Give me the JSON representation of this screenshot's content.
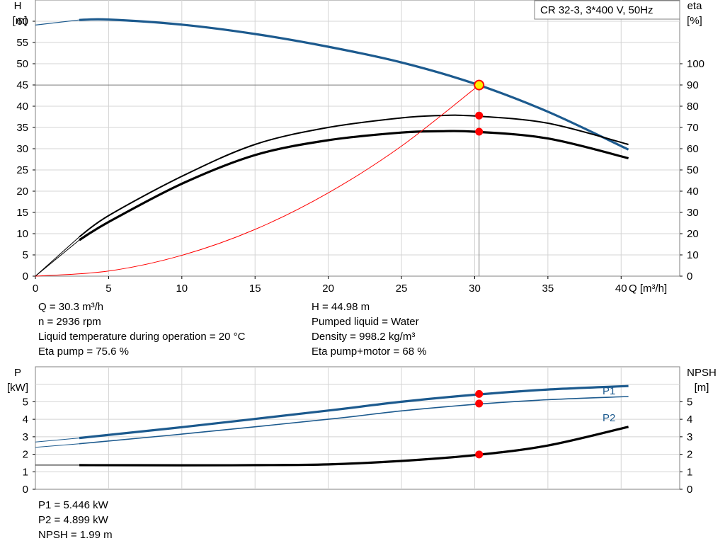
{
  "header": {
    "pump_label": "CR 32-3, 3*400 V, 50Hz"
  },
  "colors": {
    "blue": "#1c5a8e",
    "black": "#000000",
    "red": "#ff0000",
    "op_marker": "#ffee00",
    "grid": "#d4d4d4"
  },
  "upper_info": {
    "left": [
      "Q = 30.3 m³/h",
      "n = 2936 rpm",
      "Liquid temperature during operation = 20 °C",
      "Eta pump = 75.6 %"
    ],
    "right": [
      "H = 44.98 m",
      "Pumped liquid = Water",
      "Density = 998.2 kg/m³",
      "Eta pump+motor = 68 %"
    ]
  },
  "lower_info": [
    "P1 = 5.446 kW",
    "P2 = 4.899 kW",
    "NPSH = 1.99 m"
  ],
  "chart_data": [
    {
      "type": "line",
      "x_axis": {
        "label": "Q [m³/h]",
        "range": [
          0,
          44
        ],
        "ticks": [
          0,
          5,
          10,
          15,
          20,
          25,
          30,
          35,
          40
        ]
      },
      "y_axis_left": {
        "label_top": "H",
        "label_unit": "[m]",
        "range": [
          0,
          65
        ],
        "ticks": [
          0,
          5,
          10,
          15,
          20,
          25,
          30,
          35,
          40,
          45,
          50,
          55,
          60
        ]
      },
      "y_axis_right": {
        "label_top": "eta",
        "label_unit": "[%]",
        "range": [
          0,
          130
        ],
        "ticks": [
          0,
          10,
          20,
          30,
          40,
          50,
          60,
          70,
          80,
          90,
          100
        ]
      },
      "grid": true,
      "legend_box": "top-right",
      "operating_point": {
        "Q": 30.3,
        "H": 44.98
      },
      "series": [
        {
          "axis": "left",
          "color": "blue",
          "width": 3.2,
          "points": [
            [
              3,
              60.3
            ],
            [
              5,
              60.4
            ],
            [
              10,
              59.2
            ],
            [
              15,
              57.0
            ],
            [
              20,
              54.0
            ],
            [
              25,
              50.3
            ],
            [
              30,
              45.3
            ],
            [
              35,
              38.7
            ],
            [
              40.5,
              29.8
            ]
          ]
        },
        {
          "axis": "left",
          "color": "blue",
          "width": 1.2,
          "points": [
            [
              0,
              59.1
            ],
            [
              3,
              60.3
            ]
          ]
        },
        {
          "axis": "right",
          "color": "black",
          "width": 2.0,
          "points": [
            [
              3,
              18.5
            ],
            [
              5,
              28.5
            ],
            [
              10,
              47.0
            ],
            [
              15,
              62.0
            ],
            [
              20,
              70.0
            ],
            [
              25,
              74.5
            ],
            [
              27.5,
              75.6
            ],
            [
              30,
              75.4
            ],
            [
              35,
              72.0
            ],
            [
              40.5,
              62.0
            ]
          ]
        },
        {
          "axis": "right",
          "color": "black",
          "width": 3.2,
          "points": [
            [
              3,
              17.0
            ],
            [
              5,
              25.5
            ],
            [
              10,
              43.5
            ],
            [
              15,
              57.0
            ],
            [
              20,
              64.0
            ],
            [
              25,
              67.6
            ],
            [
              27.5,
              68.2
            ],
            [
              30,
              68.0
            ],
            [
              35,
              64.8
            ],
            [
              40.5,
              55.5
            ]
          ]
        },
        {
          "axis": "right",
          "color": "black",
          "width": 1.0,
          "points": [
            [
              0,
              0
            ],
            [
              3,
              18.5
            ]
          ]
        },
        {
          "axis": "right",
          "color": "black",
          "width": 1.0,
          "points": [
            [
              0,
              0
            ],
            [
              3,
              17.0
            ]
          ]
        },
        {
          "axis": "left",
          "color": "red",
          "width": 1.0,
          "points": [
            [
              0,
              0
            ],
            [
              5,
              1.2
            ],
            [
              10,
              4.9
            ],
            [
              15,
              11.0
            ],
            [
              20,
              19.6
            ],
            [
              25,
              30.6
            ],
            [
              30.3,
              44.98
            ]
          ]
        }
      ],
      "markers": [
        {
          "axis": "right",
          "x": 30.3,
          "y": 75.6
        },
        {
          "axis": "right",
          "x": 30.3,
          "y": 68.0
        }
      ]
    },
    {
      "type": "line",
      "x_axis": {
        "range": [
          0,
          44
        ]
      },
      "y_axis_left": {
        "label_top": "P",
        "label_unit": "[kW]",
        "range": [
          0,
          7
        ],
        "ticks": [
          0,
          1,
          2,
          3,
          4,
          5
        ]
      },
      "y_axis_right": {
        "label_top": "NPSH",
        "label_unit": "[m]",
        "range": [
          0,
          7
        ],
        "ticks": [
          0,
          1,
          2,
          3,
          4,
          5
        ]
      },
      "grid": true,
      "series": [
        {
          "name": "P1",
          "axis": "left",
          "color": "blue",
          "width": 3.2,
          "points": [
            [
              3,
              2.93
            ],
            [
              10,
              3.55
            ],
            [
              20,
              4.5
            ],
            [
              25,
              5.0
            ],
            [
              30,
              5.4
            ],
            [
              35,
              5.7
            ],
            [
              40.5,
              5.9
            ]
          ]
        },
        {
          "name": "P2",
          "axis": "left",
          "color": "blue",
          "width": 1.6,
          "points": [
            [
              3,
              2.6
            ],
            [
              10,
              3.15
            ],
            [
              20,
              4.0
            ],
            [
              25,
              4.48
            ],
            [
              30,
              4.85
            ],
            [
              35,
              5.12
            ],
            [
              40.5,
              5.3
            ]
          ]
        },
        {
          "axis": "left",
          "color": "blue",
          "width": 1.0,
          "points": [
            [
              0,
              2.7
            ],
            [
              3,
              2.93
            ]
          ]
        },
        {
          "axis": "left",
          "color": "blue",
          "width": 1.0,
          "points": [
            [
              0,
              2.4
            ],
            [
              3,
              2.6
            ]
          ]
        },
        {
          "axis": "right",
          "color": "black",
          "width": 3.2,
          "points": [
            [
              3,
              1.38
            ],
            [
              10,
              1.37
            ],
            [
              15,
              1.38
            ],
            [
              20,
              1.42
            ],
            [
              25,
              1.62
            ],
            [
              30,
              1.95
            ],
            [
              35,
              2.5
            ],
            [
              40.5,
              3.57
            ]
          ]
        },
        {
          "axis": "right",
          "color": "black",
          "width": 1.0,
          "points": [
            [
              0,
              1.38
            ],
            [
              3,
              1.38
            ]
          ]
        }
      ],
      "markers": [
        {
          "axis": "left",
          "x": 30.3,
          "y": 5.446
        },
        {
          "axis": "left",
          "x": 30.3,
          "y": 4.899
        },
        {
          "axis": "right",
          "x": 30.3,
          "y": 1.99
        }
      ]
    }
  ]
}
